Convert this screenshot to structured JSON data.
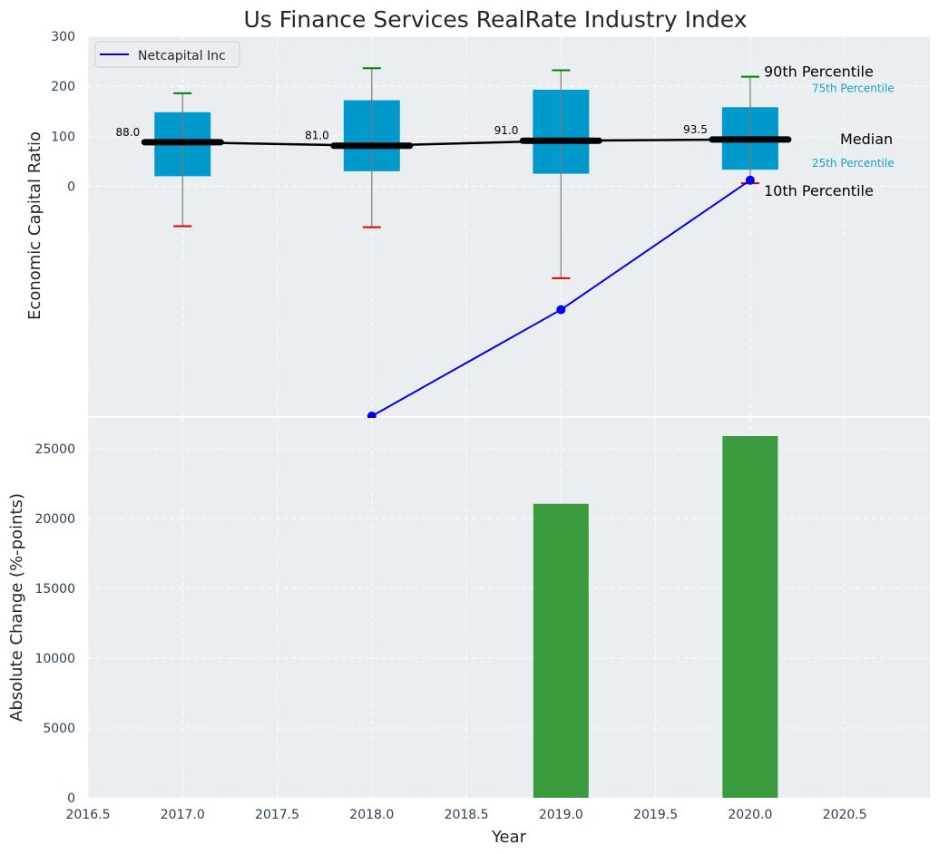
{
  "chart_data": [
    {
      "type": "box",
      "title": "Us Finance Services RealRate Industry Index",
      "ylabel": "Economic Capital Ratio",
      "ylim": [
        -460,
        300
      ],
      "yticks": [
        0,
        100,
        200,
        300
      ],
      "grid": true,
      "legend": {
        "position": "top-left",
        "entries": [
          "Netcapital Inc"
        ]
      },
      "categories": [
        2017,
        2018,
        2019,
        2020
      ],
      "boxes": [
        {
          "year": 2017,
          "p10": -80,
          "p25": 20,
          "median": 88.0,
          "p75": 148,
          "p90": 186,
          "median_label": "88.0"
        },
        {
          "year": 2018,
          "p10": -82,
          "p25": 30,
          "median": 81.0,
          "p75": 172,
          "p90": 236,
          "median_label": "81.0"
        },
        {
          "year": 2019,
          "p10": -184,
          "p25": 25,
          "median": 91.0,
          "p75": 193,
          "p90": 232,
          "median_label": "91.0"
        },
        {
          "year": 2020,
          "p10": 6,
          "p25": 33,
          "median": 93.5,
          "p75": 158,
          "p90": 219,
          "median_label": "93.5"
        }
      ],
      "series": [
        {
          "name": "Netcapital Inc",
          "color": "#0000ee",
          "x": [
            2018,
            2019,
            2020
          ],
          "values": [
            -460,
            -247,
            12
          ]
        }
      ],
      "annotations": {
        "p90": "90th Percentile",
        "p75": "75th Percentile",
        "median": "Median",
        "p25": "25th Percentile",
        "p10": "10th Percentile"
      },
      "colors": {
        "box": "#0099cc",
        "median": "#000000",
        "whisker_top": "#008000",
        "whisker_bottom": "#dd0000",
        "background": "#eaeef0"
      }
    },
    {
      "type": "bar",
      "xlabel": "Year",
      "ylabel": "Absolute Change (%-points)",
      "xlim": [
        2016.5,
        2020.95
      ],
      "xticks": [
        "2016.5",
        "2017.0",
        "2017.5",
        "2018.0",
        "2018.5",
        "2019.0",
        "2019.5",
        "2020.0",
        "2020.5"
      ],
      "ylim": [
        0,
        27200
      ],
      "yticks": [
        0,
        5000,
        10000,
        15000,
        20000,
        25000
      ],
      "x": [
        2019,
        2020
      ],
      "values": [
        21050,
        25900
      ],
      "color": "#3a9a3e"
    }
  ]
}
